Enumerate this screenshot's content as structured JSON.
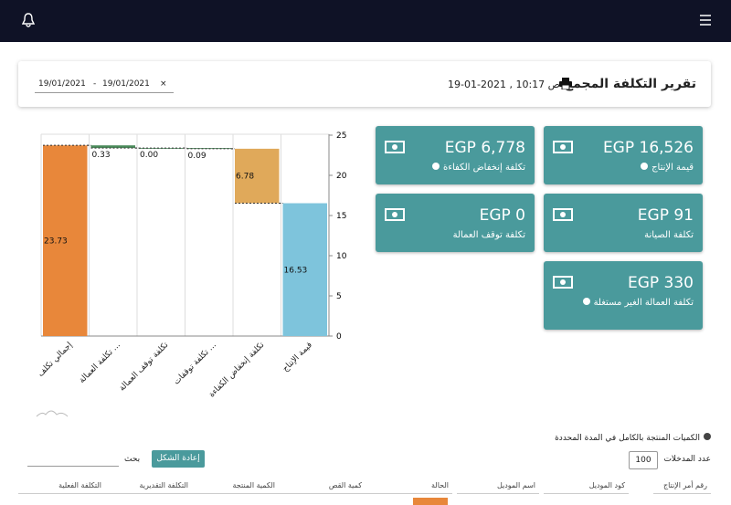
{
  "header": {
    "title": "تقرير التكلفة المجمع",
    "datetime": "ص 10:17 , 2021-01-19",
    "date_range": {
      "from": "19/01/2021",
      "separator": "-",
      "to": "19/01/2021",
      "clear": "×"
    }
  },
  "chart_data": {
    "type": "waterfall",
    "categories": [
      "إجمالي تكلف",
      "تكلفة العمالة ...",
      "تكلفة توقف العمالة",
      "تكلفة توقفات ...",
      "تكلفة إنخفاض الكفاءة",
      "قيمة الإنتاج"
    ],
    "values": [
      23.73,
      0.33,
      0,
      0.09,
      6.78,
      16.53
    ],
    "value_labels": [
      "23.73",
      "0.33",
      "0.00",
      "0.09",
      "6.78",
      "16.53"
    ],
    "measure": [
      "total",
      "decrease",
      "decrease",
      "decrease",
      "decrease",
      "total"
    ],
    "colors": [
      "#e8873a",
      "#4a8a5a",
      "#4a8a5a",
      "#4a8a5a",
      "#e0a95a",
      "#7ec4dc"
    ],
    "ylim": [
      0,
      25
    ],
    "yticks": [
      0,
      5,
      10,
      15,
      20,
      25
    ],
    "grid": true
  },
  "cards": [
    {
      "value": "EGP 16,526",
      "label": "قيمة الإنتاج",
      "info": true
    },
    {
      "value": "EGP 6,778",
      "label": "تكلفة إنخفاض الكفاءة",
      "info": true
    },
    {
      "value": "EGP 91",
      "label": "تكلفة الصيانة",
      "info": false
    },
    {
      "value": "EGP 0",
      "label": "تكلفة توقف العمالة",
      "info": false
    },
    {
      "value": "EGP 330",
      "label": "تكلفة العمالة الغير مستغلة",
      "info": true
    }
  ],
  "table_section": {
    "title": "الكميات المنتجة بالكامل في المدة المحددة",
    "entries_label": "عدد المدخلات",
    "entries_value": "100",
    "reset_button": "إعادة الشكل",
    "search_label": "بحث",
    "columns": [
      "رقم أمر الإنتاج",
      "كود الموديل",
      "اسم الموديل",
      "الحالة",
      "كمية القص",
      "الكمية المنتجة",
      "التكلفة التقديرية",
      "التكلفة الفعلية"
    ]
  }
}
